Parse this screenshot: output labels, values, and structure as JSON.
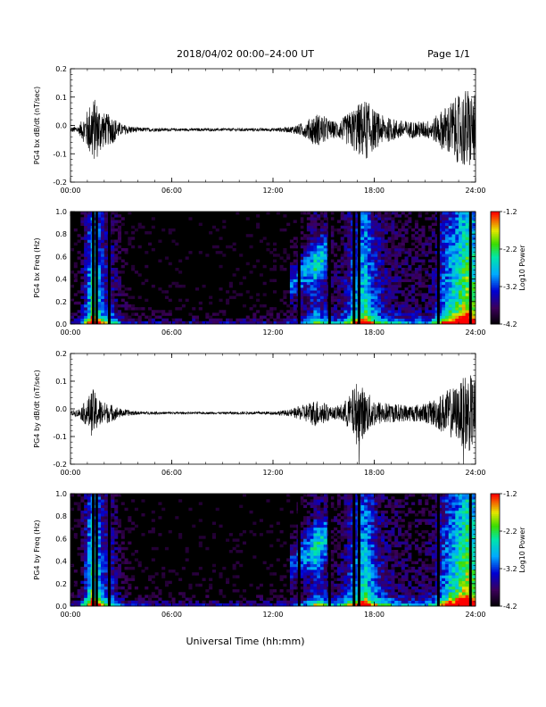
{
  "header": {
    "title": "2018/04/02  00:00–24:00 UT",
    "page": "Page 1/1"
  },
  "chart_data": [
    {
      "type": "line",
      "ylabel": "PG4 bx dB/dt (nT/sec)",
      "xlim": [
        0,
        24
      ],
      "ylim": [
        -0.2,
        0.2
      ],
      "x_tick_labels": [
        "00:00",
        "06:00",
        "12:00",
        "18:00",
        "24:00"
      ],
      "y_tick_labels": [
        "-0.2",
        "-0.1",
        "0.0",
        "0.1",
        "0.2"
      ],
      "activity_envelope": {
        "hours": [
          0,
          0.5,
          1.0,
          1.3,
          1.6,
          2.0,
          2.5,
          3.0,
          4.0,
          6.0,
          9.0,
          12.0,
          13.0,
          14.0,
          14.5,
          15.0,
          15.5,
          16.0,
          16.5,
          17.0,
          17.5,
          18.0,
          18.5,
          19.0,
          20.0,
          21.0,
          21.5,
          22.0,
          22.5,
          23.0,
          23.5,
          24.0
        ],
        "amplitude": [
          0.008,
          0.015,
          0.07,
          0.12,
          0.1,
          0.06,
          0.05,
          0.02,
          0.008,
          0.005,
          0.005,
          0.006,
          0.01,
          0.03,
          0.06,
          0.05,
          0.03,
          0.035,
          0.06,
          0.09,
          0.11,
          0.07,
          0.05,
          0.04,
          0.03,
          0.03,
          0.04,
          0.07,
          0.1,
          0.12,
          0.15,
          0.12
        ]
      }
    },
    {
      "type": "heatmap",
      "ylabel": "PG4 bx Freq (Hz)",
      "colorbar_label": "Log10 Power",
      "xlim": [
        0,
        24
      ],
      "ylim": [
        0.0,
        1.0
      ],
      "x_tick_labels": [
        "00:00",
        "06:00",
        "12:00",
        "18:00",
        "24:00"
      ],
      "y_tick_labels": [
        "0.0",
        "0.2",
        "0.4",
        "0.6",
        "0.8",
        "1.0"
      ],
      "color_range": [
        -4.2,
        -1.2
      ],
      "colorbar_ticks": [
        "-1.2",
        "-2.2",
        "-3.2",
        "-4.2"
      ],
      "gap_lines_hours": [
        1.35,
        1.55,
        2.3,
        13.55,
        15.35,
        16.8,
        17.1,
        21.8,
        23.7
      ]
    },
    {
      "type": "line",
      "ylabel": "PG4 by dB/dt (nT/sec)",
      "xlim": [
        0,
        24
      ],
      "ylim": [
        -0.2,
        0.2
      ],
      "x_tick_labels": [
        "00:00",
        "06:00",
        "12:00",
        "18:00",
        "24:00"
      ],
      "y_tick_labels": [
        "-0.2",
        "-0.1",
        "0.0",
        "0.1",
        "0.2"
      ],
      "activity_envelope": {
        "hours": [
          0,
          0.5,
          1.0,
          1.3,
          1.6,
          2.0,
          2.5,
          3.0,
          4.0,
          6.0,
          9.0,
          12.0,
          13.0,
          14.0,
          14.5,
          15.0,
          15.5,
          16.0,
          16.5,
          17.0,
          17.5,
          18.0,
          18.5,
          19.0,
          20.0,
          21.0,
          21.5,
          22.0,
          22.5,
          23.0,
          23.5,
          24.0
        ],
        "amplitude": [
          0.008,
          0.015,
          0.05,
          0.09,
          0.06,
          0.04,
          0.03,
          0.015,
          0.006,
          0.004,
          0.004,
          0.006,
          0.012,
          0.035,
          0.05,
          0.04,
          0.02,
          0.03,
          0.06,
          0.12,
          0.08,
          0.05,
          0.04,
          0.035,
          0.03,
          0.035,
          0.05,
          0.07,
          0.09,
          0.1,
          0.15,
          0.12
        ]
      }
    },
    {
      "type": "heatmap",
      "ylabel": "PG4 by Freq (Hz)",
      "colorbar_label": "Log10 Power",
      "xlim": [
        0,
        24
      ],
      "ylim": [
        0.0,
        1.0
      ],
      "x_tick_labels": [
        "00:00",
        "06:00",
        "12:00",
        "18:00",
        "24:00"
      ],
      "y_tick_labels": [
        "0.0",
        "0.2",
        "0.4",
        "0.6",
        "0.8",
        "1.0"
      ],
      "color_range": [
        -4.2,
        -1.2
      ],
      "colorbar_ticks": [
        "-1.2",
        "-2.2",
        "-3.2",
        "-4.2"
      ],
      "gap_lines_hours": [
        1.35,
        1.55,
        2.3,
        13.55,
        15.35,
        16.8,
        17.1,
        21.8,
        23.7
      ]
    }
  ],
  "footer": {
    "xlabel": "Universal Time (hh:mm)"
  }
}
